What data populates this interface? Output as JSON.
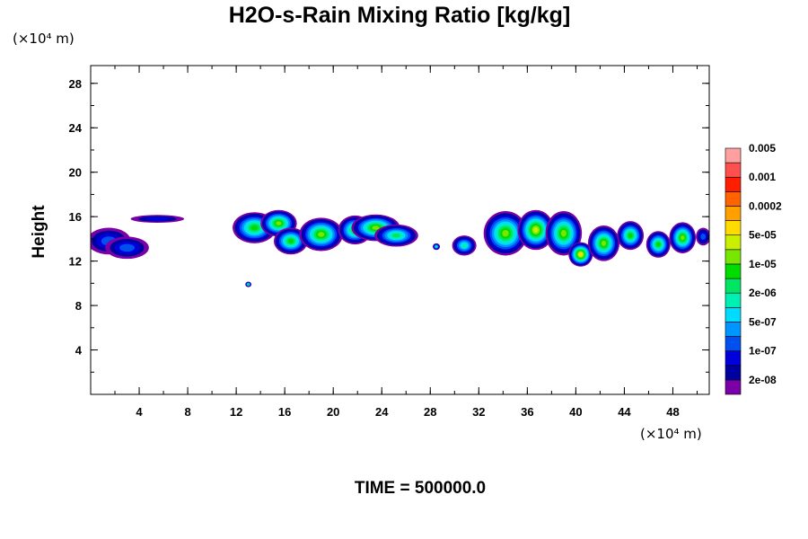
{
  "chart_data": {
    "type": "heatmap",
    "title": "H2O-s-Rain Mixing Ratio [kg/kg]",
    "ylabel": "Height",
    "x_unit": "(×10⁴ m)",
    "y_unit": "(×10⁴ m)",
    "xlim": [
      0,
      51
    ],
    "ylim": [
      0,
      29.6
    ],
    "x_ticks": [
      4,
      8,
      12,
      16,
      20,
      24,
      28,
      32,
      36,
      40,
      44,
      48
    ],
    "y_ticks": [
      4,
      8,
      12,
      16,
      20,
      24,
      28
    ],
    "x_minor_step": 2,
    "y_minor_step": 2,
    "footer": "TIME = 500000.0",
    "colorbar": {
      "colors": [
        "#7a00a8",
        "#0000a0",
        "#0000dc",
        "#0050f0",
        "#0096ff",
        "#00dcff",
        "#00f0b4",
        "#00e664",
        "#00dc00",
        "#78e600",
        "#c8f000",
        "#ffdc00",
        "#ffa000",
        "#ff6400",
        "#ff1e00",
        "#ff5050",
        "#ffa0a0"
      ],
      "labels": [
        {
          "text": "2e-08",
          "index": 1
        },
        {
          "text": "1e-07",
          "index": 3
        },
        {
          "text": "5e-07",
          "index": 5
        },
        {
          "text": "2e-06",
          "index": 7
        },
        {
          "text": "1e-05",
          "index": 9
        },
        {
          "text": "5e-05",
          "index": 11
        },
        {
          "text": "0.0002",
          "index": 13
        },
        {
          "text": "0.001",
          "index": 15
        },
        {
          "text": "0.005",
          "index": 17
        }
      ]
    },
    "blobs": [
      {
        "x": 1.5,
        "y": 13.8,
        "rx": 1.8,
        "ry": 1.2,
        "level": 3
      },
      {
        "x": 3.0,
        "y": 13.2,
        "rx": 1.8,
        "ry": 1.0,
        "level": 3
      },
      {
        "x": 5.5,
        "y": 15.8,
        "rx": 2.2,
        "ry": 0.35,
        "level": 2
      },
      {
        "x": 13.5,
        "y": 15.0,
        "rx": 1.8,
        "ry": 1.4,
        "level": 8
      },
      {
        "x": 15.5,
        "y": 15.4,
        "rx": 1.5,
        "ry": 1.2,
        "level": 9
      },
      {
        "x": 16.5,
        "y": 13.8,
        "rx": 1.4,
        "ry": 1.2,
        "level": 8
      },
      {
        "x": 19.0,
        "y": 14.4,
        "rx": 1.8,
        "ry": 1.5,
        "level": 9
      },
      {
        "x": 21.8,
        "y": 14.8,
        "rx": 1.4,
        "ry": 1.3,
        "level": 8
      },
      {
        "x": 23.5,
        "y": 15.0,
        "rx": 2.0,
        "ry": 1.2,
        "level": 9
      },
      {
        "x": 25.2,
        "y": 14.3,
        "rx": 1.8,
        "ry": 1.0,
        "level": 7
      },
      {
        "x": 13.0,
        "y": 9.9,
        "rx": 0.25,
        "ry": 0.25,
        "level": 7
      },
      {
        "x": 28.5,
        "y": 13.3,
        "rx": 0.3,
        "ry": 0.3,
        "level": 6
      },
      {
        "x": 30.8,
        "y": 13.4,
        "rx": 1.0,
        "ry": 0.9,
        "level": 6
      },
      {
        "x": 34.2,
        "y": 14.5,
        "rx": 1.8,
        "ry": 2.0,
        "level": 9
      },
      {
        "x": 36.7,
        "y": 14.8,
        "rx": 1.5,
        "ry": 1.8,
        "level": 10
      },
      {
        "x": 39.0,
        "y": 14.5,
        "rx": 1.5,
        "ry": 2.0,
        "level": 9
      },
      {
        "x": 40.4,
        "y": 12.6,
        "rx": 1.0,
        "ry": 1.1,
        "level": 11
      },
      {
        "x": 42.3,
        "y": 13.6,
        "rx": 1.3,
        "ry": 1.6,
        "level": 9
      },
      {
        "x": 44.5,
        "y": 14.3,
        "rx": 1.1,
        "ry": 1.3,
        "level": 8
      },
      {
        "x": 46.8,
        "y": 13.5,
        "rx": 1.0,
        "ry": 1.2,
        "level": 8
      },
      {
        "x": 48.8,
        "y": 14.1,
        "rx": 1.1,
        "ry": 1.4,
        "level": 9
      },
      {
        "x": 50.5,
        "y": 14.2,
        "rx": 0.6,
        "ry": 0.8,
        "level": 3
      }
    ]
  }
}
